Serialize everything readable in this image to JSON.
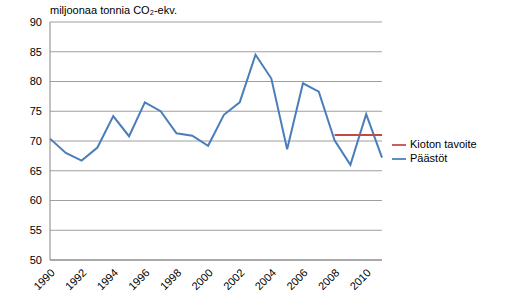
{
  "chart_data": {
    "type": "line",
    "y_label": "miljoonaa tonnia CO₂-ekv.",
    "categories": [
      1990,
      null,
      1992,
      null,
      1994,
      null,
      1996,
      null,
      1998,
      null,
      2000,
      null,
      2002,
      null,
      2004,
      null,
      2006,
      null,
      2008,
      null,
      2010,
      null
    ],
    "series": [
      {
        "name": "Päästöt",
        "color": "#4a7ebb",
        "values": [
          70.4,
          68.0,
          66.7,
          68.9,
          74.2,
          70.8,
          76.5,
          75.0,
          71.3,
          70.9,
          69.2,
          74.4,
          76.5,
          84.5,
          80.5,
          68.6,
          79.7,
          78.3,
          70.1,
          66.0,
          74.5,
          67.2
        ]
      },
      {
        "name": "Kioton tavoite",
        "color": "#be4b48",
        "values": [
          null,
          null,
          null,
          null,
          null,
          null,
          null,
          null,
          null,
          null,
          null,
          null,
          null,
          null,
          null,
          null,
          null,
          null,
          71.0,
          71.0,
          71.0,
          71.0
        ]
      }
    ],
    "ylim": [
      50,
      90
    ],
    "yticks": [
      50,
      55,
      60,
      65,
      70,
      75,
      80,
      85,
      90
    ],
    "grid": true,
    "legend": "right"
  }
}
